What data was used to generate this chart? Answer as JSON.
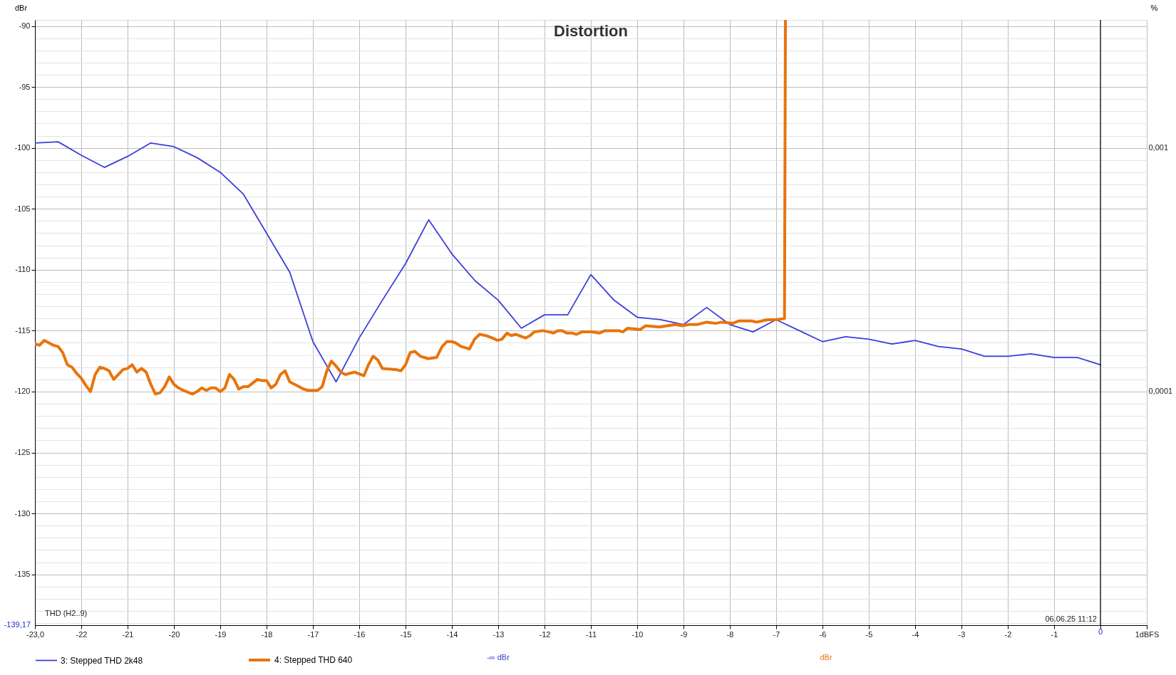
{
  "chart_data": {
    "type": "line",
    "title": "Distortion",
    "ylabel": "dBr",
    "y2label": "%",
    "xlim": [
      -23,
      1
    ],
    "ylim": [
      -139.17,
      -89.5
    ],
    "xticks": [
      {
        "value": -23,
        "label": "-23,0"
      },
      -22,
      -21,
      -20,
      -19,
      -18,
      -17,
      -16,
      -15,
      -14,
      -13,
      -12,
      -11,
      -10,
      -9,
      -8,
      -7,
      -6,
      -5,
      -4,
      -3,
      -2,
      -1,
      {
        "value": 0,
        "label": null
      },
      {
        "value": 1,
        "label": "1dBFS"
      }
    ],
    "yticks": [
      -90,
      {
        "value": -91,
        "label": null
      },
      {
        "value": -92,
        "label": null
      },
      {
        "value": -93,
        "label": null
      },
      {
        "value": -94,
        "label": null
      },
      -95,
      {
        "value": -96,
        "label": null
      },
      {
        "value": -97,
        "label": null
      },
      {
        "value": -98,
        "label": null
      },
      {
        "value": -99,
        "label": null
      },
      -100,
      {
        "value": -101,
        "label": null
      },
      {
        "value": -102,
        "label": null
      },
      {
        "value": -103,
        "label": null
      },
      {
        "value": -104,
        "label": null
      },
      -105,
      {
        "value": -106,
        "label": null
      },
      {
        "value": -107,
        "label": null
      },
      {
        "value": -108,
        "label": null
      },
      {
        "value": -109,
        "label": null
      },
      -110,
      {
        "value": -111,
        "label": null
      },
      {
        "value": -112,
        "label": null
      },
      {
        "value": -113,
        "label": null
      },
      {
        "value": -114,
        "label": null
      },
      -115,
      {
        "value": -116,
        "label": null
      },
      {
        "value": -117,
        "label": null
      },
      {
        "value": -118,
        "label": null
      },
      {
        "value": -119,
        "label": null
      },
      -120,
      {
        "value": -121,
        "label": null
      },
      {
        "value": -122,
        "label": null
      },
      {
        "value": -123,
        "label": null
      },
      {
        "value": -124,
        "label": null
      },
      -125,
      {
        "value": -126,
        "label": null
      },
      {
        "value": -127,
        "label": null
      },
      {
        "value": -128,
        "label": null
      },
      {
        "value": -129,
        "label": null
      },
      -130,
      {
        "value": -131,
        "label": null
      },
      {
        "value": -132,
        "label": null
      },
      {
        "value": -133,
        "label": null
      },
      {
        "value": -134,
        "label": null
      },
      -135,
      {
        "value": -136,
        "label": null
      },
      {
        "value": -137,
        "label": null
      },
      {
        "value": -138,
        "label": null
      },
      {
        "value": -139,
        "label": null
      }
    ],
    "y2lim": [
      1.1e-05,
      0.00335
    ],
    "y2ticks": [
      {
        "value": 0.001,
        "label": "0,001"
      },
      {
        "value": 0.0001,
        "label": "0,0001"
      }
    ],
    "log": "y2",
    "grid": true,
    "legend": "bottom",
    "ref_lines": [
      {
        "axis": "x",
        "value": 0,
        "label": "0",
        "color": "#000000"
      }
    ],
    "annotations": [
      "THD (H2..9)",
      "06.06.25 11:12",
      "-139,17",
      "-∞ dBr",
      "dBr"
    ],
    "series": [
      {
        "name": "3: Stepped THD 2k48",
        "color": "#3b3fd8",
        "x": [
          -23,
          -22.5,
          -22,
          -21.5,
          -21,
          -20.5,
          -20,
          -19.5,
          -19,
          -18.5,
          -18,
          -17.5,
          -17,
          -16.5,
          -16,
          -15.5,
          -15,
          -14.5,
          -14,
          -13.5,
          -13,
          -12.5,
          -12,
          -11.5,
          -11,
          -10.5,
          -10,
          -9.5,
          -9,
          -8.5,
          -8,
          -7.5,
          -7,
          -6.5,
          -6,
          -5.5,
          -5,
          -4.5,
          -4,
          -3.5,
          -3,
          -2.5,
          -2,
          -1.5,
          -1,
          -0.5,
          0
        ],
        "values": [
          -99.6,
          -99.5,
          -100.6,
          -101.6,
          -100.7,
          -99.6,
          -99.9,
          -100.8,
          -102.0,
          -103.8,
          -107.0,
          -110.2,
          -115.9,
          -119.2,
          -115.6,
          -112.5,
          -109.5,
          -105.9,
          -108.7,
          -110.9,
          -112.5,
          -114.8,
          -113.7,
          -113.7,
          -110.4,
          -112.5,
          -113.9,
          -114.1,
          -114.5,
          -113.1,
          -114.5,
          -115.1,
          -114.1,
          -115.0,
          -115.9,
          -115.5,
          -115.7,
          -116.1,
          -115.8,
          -116.3,
          -116.5,
          -117.1,
          -117.1,
          -116.9,
          -117.2,
          -117.2,
          -117.8
        ]
      },
      {
        "name": "4: Stepped THD 640",
        "color": "#e8740c",
        "x": [
          -23,
          -22.9,
          -22.8,
          -22.6,
          -22.5,
          -22.4,
          -22.3,
          -22.2,
          -22.1,
          -22.0,
          -21.9,
          -21.8,
          -21.7,
          -21.6,
          -21.5,
          -21.4,
          -21.3,
          -21.1,
          -21.0,
          -20.9,
          -20.8,
          -20.7,
          -20.6,
          -20.5,
          -20.4,
          -20.3,
          -20.2,
          -20.1,
          -20.0,
          -19.9,
          -19.8,
          -19.6,
          -19.5,
          -19.4,
          -19.3,
          -19.2,
          -19.1,
          -19.0,
          -18.9,
          -18.8,
          -18.7,
          -18.6,
          -18.5,
          -18.4,
          -18.2,
          -18.1,
          -18.0,
          -17.9,
          -17.8,
          -17.7,
          -17.6,
          -17.5,
          -17.3,
          -17.2,
          -17.1,
          -16.9,
          -16.8,
          -16.7,
          -16.6,
          -16.5,
          -16.4,
          -16.3,
          -16.1,
          -15.9,
          -15.8,
          -15.7,
          -15.6,
          -15.5,
          -15.2,
          -15.1,
          -15.0,
          -14.9,
          -14.8,
          -14.68,
          -14.51,
          -14.33,
          -14.21,
          -14.11,
          -14.0,
          -13.92,
          -13.8,
          -13.62,
          -13.51,
          -13.4,
          -13.27,
          -13.13,
          -13.01,
          -12.92,
          -12.81,
          -12.72,
          -12.62,
          -12.41,
          -12.31,
          -12.22,
          -12.04,
          -11.9,
          -11.81,
          -11.71,
          -11.62,
          -11.52,
          -11.4,
          -11.31,
          -11.19,
          -10.99,
          -10.81,
          -10.7,
          -10.52,
          -10.4,
          -10.31,
          -10.21,
          -9.93,
          -9.82,
          -9.52,
          -9.35,
          -9.17,
          -9.03,
          -8.88,
          -8.71,
          -8.5,
          -8.3,
          -8.18,
          -7.94,
          -7.8,
          -7.53,
          -7.42,
          -7.19,
          -7.0,
          -6.82,
          -6.8
        ],
        "values": [
          -116.1,
          -116.2,
          -115.8,
          -116.2,
          -116.3,
          -116.8,
          -117.8,
          -118.0,
          -118.5,
          -118.9,
          -119.5,
          -120.0,
          -118.6,
          -118.0,
          -118.1,
          -118.3,
          -119.0,
          -118.2,
          -118.1,
          -117.8,
          -118.4,
          -118.1,
          -118.4,
          -119.4,
          -120.2,
          -120.1,
          -119.6,
          -118.8,
          -119.4,
          -119.7,
          -119.9,
          -120.2,
          -120.0,
          -119.7,
          -119.9,
          -119.7,
          -119.7,
          -120.0,
          -119.7,
          -118.6,
          -119.0,
          -119.8,
          -119.6,
          -119.6,
          -119.0,
          -119.1,
          -119.1,
          -119.7,
          -119.4,
          -118.6,
          -118.3,
          -119.2,
          -119.6,
          -119.8,
          -119.9,
          -119.9,
          -119.6,
          -118.3,
          -117.5,
          -117.9,
          -118.4,
          -118.6,
          -118.4,
          -118.7,
          -117.8,
          -117.1,
          -117.4,
          -118.1,
          -118.2,
          -118.3,
          -117.8,
          -116.8,
          -116.7,
          -117.1,
          -117.3,
          -117.2,
          -116.3,
          -115.9,
          -115.9,
          -116.0,
          -116.3,
          -116.5,
          -115.7,
          -115.3,
          -115.4,
          -115.6,
          -115.8,
          -115.7,
          -115.2,
          -115.4,
          -115.3,
          -115.6,
          -115.4,
          -115.1,
          -115.0,
          -115.1,
          -115.2,
          -115.0,
          -115.0,
          -115.2,
          -115.2,
          -115.3,
          -115.1,
          -115.1,
          -115.2,
          -115.0,
          -115.0,
          -115.0,
          -115.1,
          -114.8,
          -114.9,
          -114.6,
          -114.7,
          -114.6,
          -114.5,
          -114.6,
          -114.5,
          -114.5,
          -114.3,
          -114.4,
          -114.3,
          -114.4,
          -114.2,
          -114.2,
          -114.3,
          -114.1,
          -114.1,
          -114.0,
          -89.5
        ]
      }
    ]
  }
}
